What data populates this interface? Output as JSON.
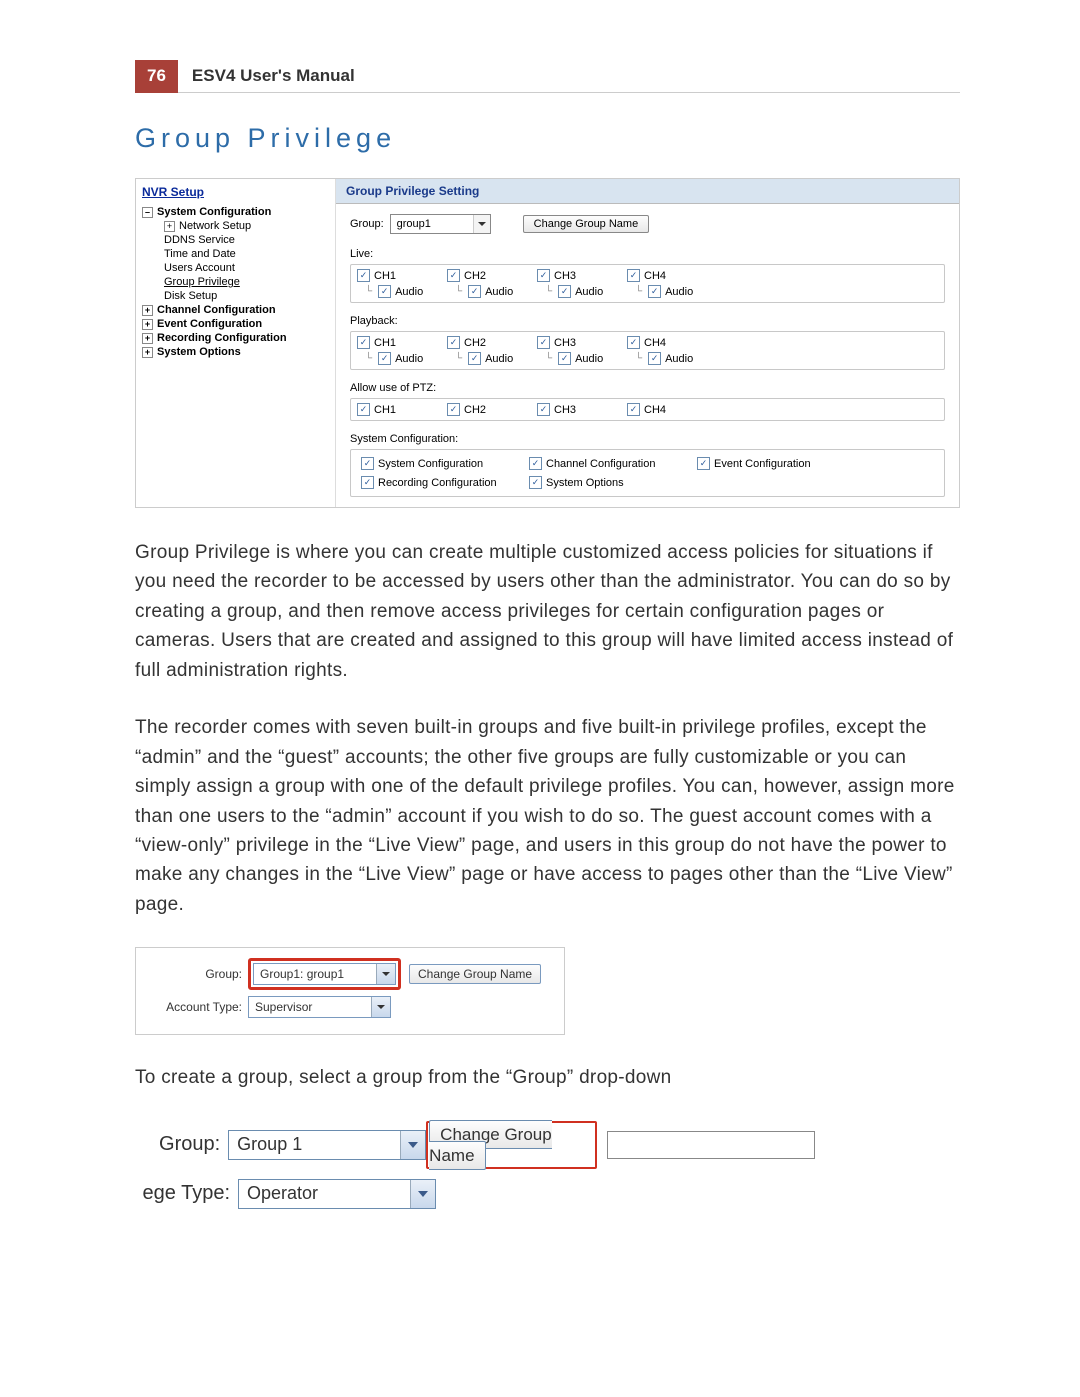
{
  "header": {
    "page_number": "76",
    "manual_title": "ESV4 User's Manual"
  },
  "section_title": "Group Privilege",
  "nav": {
    "title": "NVR Setup",
    "root": {
      "label": "System Configuration",
      "marker": "–"
    },
    "children": [
      {
        "label": "Network Setup",
        "marker": "+"
      },
      {
        "label": "DDNS Service"
      },
      {
        "label": "Time and Date"
      },
      {
        "label": "Users Account"
      },
      {
        "label": "Group Privilege",
        "link": true
      },
      {
        "label": "Disk Setup"
      }
    ],
    "siblings": [
      {
        "label": "Channel Configuration",
        "marker": "+"
      },
      {
        "label": "Event Configuration",
        "marker": "+"
      },
      {
        "label": "Recording Configuration",
        "marker": "+"
      },
      {
        "label": "System Options",
        "marker": "+"
      }
    ]
  },
  "panel": {
    "title": "Group Privilege Setting",
    "group_label": "Group:",
    "group_value": "group1",
    "change_btn": "Change Group Name",
    "sections": {
      "live": {
        "label": "Live:",
        "channels": [
          "CH1",
          "CH2",
          "CH3",
          "CH4"
        ],
        "audio": "Audio"
      },
      "playback": {
        "label": "Playback:",
        "channels": [
          "CH1",
          "CH2",
          "CH3",
          "CH4"
        ],
        "audio": "Audio"
      },
      "ptz": {
        "label": "Allow use of PTZ:",
        "channels": [
          "CH1",
          "CH2",
          "CH3",
          "CH4"
        ]
      }
    },
    "sysconf": {
      "label": "System Configuration:",
      "items": [
        "System Configuration",
        "Channel Configuration",
        "Event Configuration",
        "Recording Configuration",
        "System Options"
      ]
    }
  },
  "body": {
    "p1": "Group Privilege is where you can create multiple customized access policies for situations if you need the recorder to be accessed by users other than the administrator. You can do so by creating a group, and then remove access privileges for certain configuration pages or cameras. Users that are created and assigned to this group will have limited access instead of full administration rights.",
    "p2": "The recorder comes with seven built-in groups and five built-in privilege profiles, except the “admin” and the “guest” accounts; the other five groups are fully customizable or you can simply assign a group with one of the default privilege profiles. You can, however, assign more than one users to the “admin” account if you wish to do so. The guest account comes with a “view-only” privilege in the “Live View” page, and users in this group do not have the power to make any changes in the “Live View” page or have access to pages other than the “Live View” page.",
    "p3": "To create a group, select a group from the “Group” drop-down"
  },
  "shot2": {
    "group_label": "Group:",
    "group_value": "Group1: group1",
    "change_btn": "Change Group Name",
    "acct_label": "Account Type:",
    "acct_value": "Supervisor"
  },
  "shot3": {
    "group_label": "Group:",
    "group_value": "Group 1",
    "change_btn": "Change Group Name",
    "type_label": "ege Type:",
    "type_value": "Operator"
  },
  "colors": {
    "accent": "#a84038",
    "link": "#2d6ca8",
    "highlight": "#d03020"
  }
}
